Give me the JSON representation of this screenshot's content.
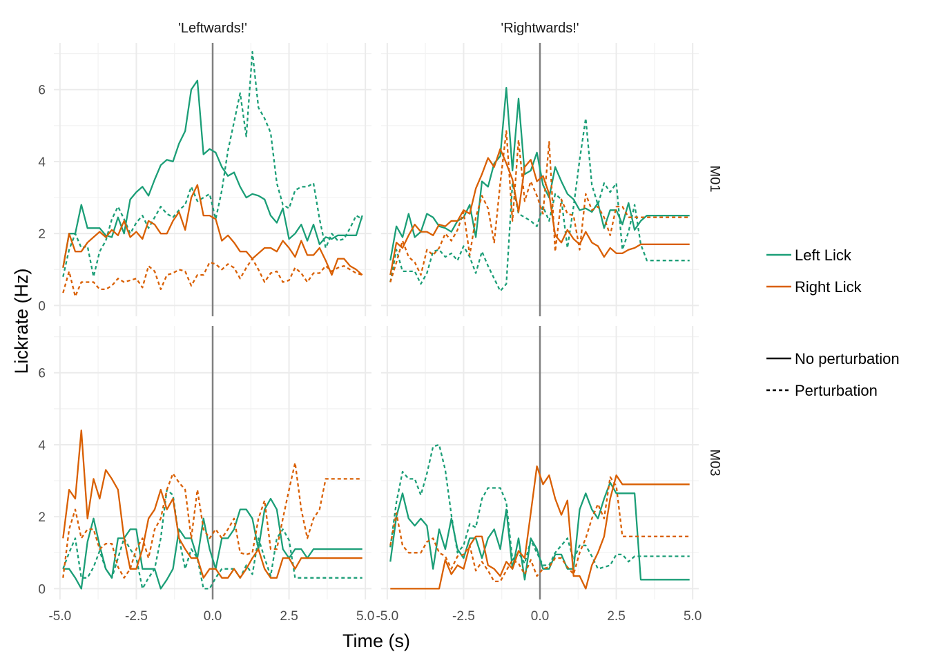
{
  "chart_data": {
    "type": "line",
    "xlabel": "Time (s)",
    "ylabel": "Lickrate (Hz)",
    "xlim": [
      -5.2,
      5.2
    ],
    "ylim": [
      -0.3,
      7.3
    ],
    "x_ticks": [
      -5.0,
      -2.5,
      0.0,
      2.5,
      5.0
    ],
    "x_tick_labels": [
      "-5.0",
      "-2.5",
      "0.0",
      "2.5",
      "5.0"
    ],
    "y_ticks": [
      0,
      2,
      4,
      6
    ],
    "y_tick_labels": [
      "0",
      "2",
      "4",
      "6"
    ],
    "grid": true,
    "vline_x": 0,
    "colors": {
      "left_lick": "#1b9e77",
      "right_lick": "#d95f02",
      "vline": "#808080"
    },
    "facet_columns": [
      "'Leftwards!'",
      "'Rightwards!'"
    ],
    "facet_rows": [
      "M01",
      "M03"
    ],
    "legend": {
      "placement": "right",
      "color_entries": [
        {
          "label": "Left Lick",
          "color": "#1b9e77"
        },
        {
          "label": "Right Lick",
          "color": "#d95f02"
        }
      ],
      "linetype_entries": [
        {
          "label": "No perturbation",
          "dash": "solid"
        },
        {
          "label": "Perturbation",
          "dash": "dashed"
        }
      ]
    },
    "x": [
      -4.9,
      -4.7,
      -4.5,
      -4.3,
      -4.1,
      -3.9,
      -3.7,
      -3.5,
      -3.3,
      -3.1,
      -2.9,
      -2.7,
      -2.5,
      -2.3,
      -2.1,
      -1.9,
      -1.7,
      -1.5,
      -1.3,
      -1.1,
      -0.9,
      -0.7,
      -0.5,
      -0.3,
      -0.1,
      0.1,
      0.3,
      0.5,
      0.7,
      0.9,
      1.1,
      1.3,
      1.5,
      1.7,
      1.9,
      2.1,
      2.3,
      2.5,
      2.7,
      2.9,
      3.1,
      3.3,
      3.5,
      3.7,
      3.9,
      4.1,
      4.3,
      4.5,
      4.7,
      4.9
    ],
    "panels": [
      {
        "row": 0,
        "col": 0,
        "series": [
          {
            "color": "left_lick",
            "dash": "solid",
            "values": [
              1.05,
              2.0,
              2.0,
              2.8,
              2.15,
              2.15,
              2.15,
              1.95,
              1.9,
              2.45,
              2.0,
              2.95,
              3.15,
              3.3,
              3.05,
              3.5,
              3.9,
              4.05,
              4.0,
              4.5,
              4.85,
              6.0,
              6.25,
              4.2,
              4.35,
              4.25,
              3.85,
              3.6,
              3.7,
              3.3,
              3.0,
              3.1,
              3.05,
              2.95,
              2.5,
              2.3,
              2.7,
              1.85,
              2.0,
              2.25,
              1.8,
              2.25,
              1.7,
              1.9,
              1.85,
              1.95,
              1.95,
              1.95,
              1.95,
              2.5
            ]
          },
          {
            "color": "left_lick",
            "dash": "dashed",
            "values": [
              0.8,
              1.55,
              2.0,
              1.6,
              1.65,
              0.8,
              1.5,
              1.8,
              2.4,
              2.75,
              2.4,
              2.0,
              2.3,
              2.5,
              2.15,
              2.45,
              2.75,
              2.55,
              2.45,
              2.65,
              2.8,
              3.3,
              2.9,
              3.0,
              3.1,
              2.4,
              3.2,
              4.3,
              5.1,
              5.9,
              4.7,
              7.05,
              5.5,
              5.2,
              4.8,
              3.4,
              2.8,
              2.7,
              3.2,
              3.3,
              3.3,
              3.4,
              2.4,
              1.6,
              2.0,
              1.8,
              1.85,
              2.15,
              2.5,
              2.4
            ]
          },
          {
            "color": "right_lick",
            "dash": "solid",
            "values": [
              1.05,
              2.0,
              1.5,
              1.5,
              1.75,
              1.9,
              2.05,
              1.9,
              2.1,
              1.95,
              2.35,
              1.9,
              2.05,
              1.85,
              2.35,
              2.25,
              2.0,
              2.0,
              2.35,
              2.6,
              2.1,
              3.0,
              3.35,
              2.5,
              2.5,
              2.4,
              1.8,
              1.95,
              1.75,
              1.5,
              1.5,
              1.3,
              1.45,
              1.6,
              1.6,
              1.5,
              1.8,
              1.6,
              1.35,
              1.8,
              1.4,
              1.4,
              1.6,
              1.25,
              0.85,
              1.3,
              1.3,
              1.1,
              1.0,
              0.85
            ]
          },
          {
            "color": "right_lick",
            "dash": "dashed",
            "values": [
              0.35,
              0.95,
              0.25,
              0.65,
              0.65,
              0.65,
              0.45,
              0.45,
              0.55,
              0.75,
              0.65,
              0.7,
              0.75,
              0.5,
              1.1,
              0.95,
              0.45,
              0.85,
              0.9,
              1.0,
              0.95,
              0.55,
              0.85,
              0.85,
              1.2,
              1.15,
              1.0,
              1.15,
              1.05,
              0.75,
              1.05,
              1.3,
              1.0,
              0.65,
              0.9,
              0.95,
              0.65,
              0.7,
              1.05,
              0.9,
              0.65,
              0.9,
              0.9,
              1.1,
              0.95,
              1.05,
              1.1,
              1.0,
              0.9,
              0.85
            ]
          }
        ]
      },
      {
        "row": 0,
        "col": 1,
        "series": [
          {
            "color": "left_lick",
            "dash": "solid",
            "values": [
              1.25,
              2.2,
              1.9,
              2.55,
              1.9,
              2.05,
              2.55,
              2.45,
              2.2,
              2.15,
              2.05,
              2.35,
              2.45,
              2.8,
              1.9,
              3.45,
              3.3,
              3.95,
              4.15,
              6.05,
              3.75,
              5.75,
              3.65,
              3.75,
              4.25,
              3.35,
              3.0,
              3.85,
              3.45,
              3.1,
              2.95,
              2.65,
              2.7,
              2.6,
              2.85,
              2.15,
              2.65,
              2.65,
              2.25,
              2.85,
              2.1,
              2.35,
              2.5,
              2.5,
              2.5,
              2.5,
              2.5,
              2.5,
              2.5,
              2.5
            ]
          },
          {
            "color": "left_lick",
            "dash": "dashed",
            "values": [
              0.65,
              1.55,
              0.95,
              0.95,
              0.95,
              0.6,
              0.9,
              1.5,
              1.55,
              1.35,
              1.45,
              1.25,
              1.65,
              1.35,
              0.9,
              1.5,
              1.1,
              0.75,
              0.4,
              0.6,
              3.4,
              2.55,
              2.45,
              2.35,
              2.2,
              2.75,
              2.35,
              3.1,
              2.95,
              1.6,
              2.75,
              4.05,
              5.2,
              3.35,
              2.8,
              3.4,
              3.15,
              3.4,
              1.55,
              2.05,
              2.8,
              1.7,
              1.25,
              1.25,
              1.25,
              1.25,
              1.25,
              1.25,
              1.25,
              1.25
            ]
          },
          {
            "color": "right_lick",
            "dash": "solid",
            "values": [
              0.85,
              1.75,
              1.6,
              1.95,
              2.25,
              2.05,
              2.05,
              1.95,
              2.25,
              2.2,
              2.35,
              2.35,
              2.65,
              2.55,
              3.25,
              3.65,
              4.1,
              3.85,
              4.35,
              3.95,
              3.5,
              2.6,
              3.85,
              4.05,
              3.45,
              3.6,
              3.1,
              1.95,
              1.75,
              2.1,
              1.85,
              1.7,
              2.05,
              1.75,
              1.65,
              1.35,
              1.6,
              1.45,
              1.45,
              1.55,
              1.6,
              1.7,
              1.7,
              1.7,
              1.7,
              1.7,
              1.7,
              1.7,
              1.7,
              1.7
            ]
          },
          {
            "color": "right_lick",
            "dash": "dashed",
            "values": [
              0.65,
              1.2,
              1.8,
              1.35,
              1.2,
              0.85,
              1.55,
              1.4,
              1.6,
              2.0,
              1.8,
              2.1,
              2.6,
              1.4,
              2.45,
              3.05,
              2.7,
              1.75,
              3.4,
              4.85,
              2.35,
              4.6,
              2.9,
              3.45,
              3.05,
              2.55,
              4.55,
              1.5,
              2.95,
              2.55,
              2.5,
              1.55,
              3.1,
              2.65,
              2.75,
              2.45,
              1.95,
              2.75,
              2.75,
              2.45,
              2.45,
              2.45,
              2.45,
              2.45,
              2.45,
              2.45,
              2.45,
              2.45,
              2.45,
              2.45
            ]
          }
        ]
      },
      {
        "row": 1,
        "col": 0,
        "series": [
          {
            "color": "left_lick",
            "dash": "solid",
            "values": [
              0.55,
              0.55,
              0.3,
              0.0,
              1.3,
              1.95,
              1.2,
              0.55,
              0.3,
              1.4,
              1.4,
              1.65,
              1.65,
              0.55,
              0.55,
              0.55,
              0.0,
              0.25,
              0.55,
              1.65,
              1.4,
              1.4,
              0.85,
              1.95,
              1.1,
              0.55,
              1.4,
              1.4,
              1.65,
              2.2,
              2.2,
              1.95,
              1.1,
              2.2,
              2.5,
              2.2,
              1.1,
              0.85,
              1.1,
              1.1,
              0.85,
              1.1,
              1.1,
              1.1,
              1.1,
              1.1,
              1.1,
              1.1,
              1.1,
              1.1
            ]
          },
          {
            "color": "left_lick",
            "dash": "dashed",
            "values": [
              0.55,
              1.0,
              1.4,
              0.3,
              0.3,
              0.6,
              1.05,
              0.55,
              0.3,
              0.85,
              1.4,
              1.1,
              0.85,
              0.0,
              0.3,
              0.55,
              1.4,
              2.75,
              2.6,
              1.4,
              0.55,
              1.1,
              0.85,
              0.0,
              0.0,
              0.3,
              0.55,
              0.55,
              0.55,
              0.3,
              0.65,
              0.4,
              1.4,
              0.85,
              0.35,
              1.4,
              1.65,
              1.35,
              0.3,
              0.3,
              0.3,
              0.3,
              0.3,
              0.3,
              0.3,
              0.3,
              0.3,
              0.3,
              0.3,
              0.3
            ]
          },
          {
            "color": "right_lick",
            "dash": "solid",
            "values": [
              1.4,
              2.75,
              2.5,
              4.4,
              1.95,
              3.05,
              2.5,
              3.3,
              3.05,
              2.75,
              1.4,
              0.55,
              0.55,
              1.1,
              1.95,
              2.2,
              2.75,
              2.2,
              2.5,
              1.4,
              1.1,
              0.85,
              0.85,
              0.3,
              0.55,
              0.55,
              0.3,
              0.3,
              0.55,
              0.3,
              0.55,
              0.85,
              1.1,
              0.55,
              0.3,
              0.3,
              0.85,
              0.85,
              0.55,
              0.85,
              0.85,
              0.85,
              0.85,
              0.85,
              0.85,
              0.85,
              0.85,
              0.85,
              0.85,
              0.85
            ]
          },
          {
            "color": "right_lick",
            "dash": "dashed",
            "values": [
              0.3,
              1.65,
              2.2,
              1.4,
              1.65,
              1.65,
              1.1,
              1.25,
              1.25,
              0.6,
              0.3,
              0.55,
              1.1,
              1.4,
              0.85,
              1.65,
              1.95,
              2.75,
              3.2,
              2.95,
              2.75,
              1.4,
              2.75,
              1.65,
              1.4,
              1.65,
              1.4,
              1.65,
              1.95,
              1.0,
              0.95,
              1.0,
              1.95,
              2.45,
              1.1,
              1.1,
              1.95,
              2.75,
              3.5,
              2.2,
              1.4,
              1.95,
              2.2,
              3.05,
              3.05,
              3.05,
              3.05,
              3.05,
              3.05,
              3.05
            ]
          }
        ]
      },
      {
        "row": 1,
        "col": 1,
        "series": [
          {
            "color": "left_lick",
            "dash": "solid",
            "values": [
              0.75,
              2.0,
              2.65,
              1.95,
              1.75,
              1.95,
              1.75,
              0.55,
              1.65,
              1.1,
              1.95,
              1.1,
              0.85,
              1.4,
              1.4,
              0.85,
              1.4,
              1.65,
              1.1,
              2.2,
              0.55,
              1.4,
              0.25,
              1.4,
              1.1,
              0.55,
              0.55,
              0.95,
              0.95,
              0.55,
              0.55,
              2.2,
              2.65,
              2.2,
              1.95,
              2.5,
              2.95,
              2.65,
              2.65,
              2.65,
              2.65,
              0.25,
              0.25,
              0.25,
              0.25,
              0.25,
              0.25,
              0.25,
              0.25,
              0.25
            ]
          },
          {
            "color": "left_lick",
            "dash": "dashed",
            "values": [
              1.15,
              2.4,
              3.25,
              3.05,
              3.05,
              2.6,
              3.2,
              3.95,
              4.0,
              3.3,
              2.05,
              1.0,
              1.2,
              1.8,
              1.7,
              2.5,
              2.8,
              2.8,
              2.8,
              2.4,
              0.8,
              1.0,
              0.7,
              1.35,
              1.0,
              0.65,
              0.65,
              1.0,
              1.2,
              1.4,
              0.8,
              1.2,
              1.2,
              0.9,
              0.55,
              0.6,
              0.65,
              0.95,
              0.95,
              0.75,
              0.9,
              0.9,
              0.9,
              0.9,
              0.9,
              0.9,
              0.9,
              0.9,
              0.9,
              0.9
            ]
          },
          {
            "color": "right_lick",
            "dash": "solid",
            "values": [
              0.0,
              0.0,
              0.0,
              0.0,
              0.0,
              0.0,
              0.0,
              0.0,
              0.0,
              0.8,
              0.4,
              0.65,
              0.55,
              1.2,
              1.45,
              1.45,
              0.65,
              0.55,
              0.35,
              0.75,
              0.55,
              1.05,
              0.85,
              2.1,
              3.4,
              2.9,
              3.15,
              2.5,
              2.05,
              2.45,
              0.35,
              0.35,
              0.0,
              0.65,
              1.0,
              1.45,
              2.5,
              3.15,
              2.9,
              2.9,
              2.9,
              2.9,
              2.9,
              2.9,
              2.9,
              2.9,
              2.9,
              2.9,
              2.9,
              2.9
            ]
          },
          {
            "color": "right_lick",
            "dash": "dashed",
            "values": [
              1.2,
              2.1,
              1.2,
              1.0,
              1.0,
              1.0,
              1.3,
              1.4,
              1.0,
              0.9,
              0.55,
              0.9,
              0.95,
              1.2,
              0.5,
              0.75,
              0.5,
              0.2,
              0.2,
              0.5,
              0.8,
              0.7,
              0.4,
              0.8,
              0.35,
              0.55,
              0.6,
              0.85,
              0.85,
              0.6,
              0.4,
              1.0,
              1.4,
              1.95,
              2.35,
              1.95,
              3.1,
              2.85,
              1.45,
              1.45,
              1.45,
              1.45,
              1.45,
              1.45,
              1.45,
              1.45,
              1.45,
              1.45,
              1.45,
              1.45
            ]
          }
        ]
      }
    ]
  }
}
